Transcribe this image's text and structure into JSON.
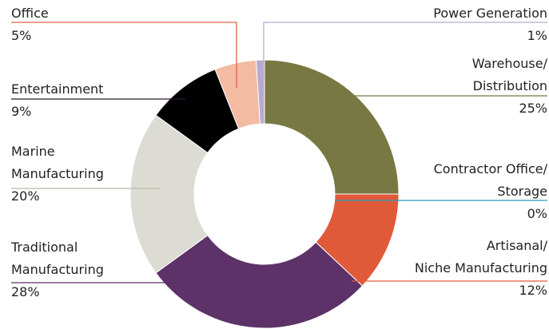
{
  "chart_data": {
    "type": "donut",
    "categories": [
      "Warehouse/\nDistribution",
      "Contractor Office/\nStorage",
      "Artisanal/\nNiche Manufacturing",
      "Traditional\nManufacturing",
      "Marine\nManufacturing",
      "Entertainment",
      "Office",
      "Power Generation"
    ],
    "values": [
      25,
      0,
      12,
      28,
      20,
      9,
      5,
      1
    ],
    "value_labels": [
      "25%",
      "0%",
      "12%",
      "28%",
      "20%",
      "9%",
      "5%",
      "1%"
    ],
    "colors": [
      "#787843",
      "#2b9cb8",
      "#e05a3a",
      "#5c3268",
      "#dcdcd4",
      "#000000",
      "#f2bba2",
      "#b9aad2"
    ]
  }
}
